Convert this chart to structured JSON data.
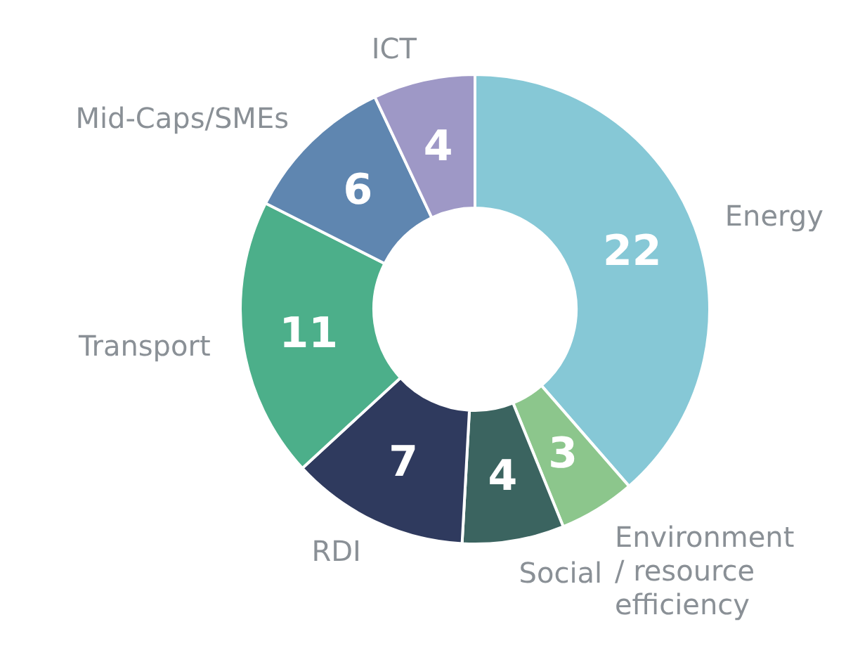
{
  "chart_data": {
    "type": "donut",
    "categories": [
      "Energy",
      "Environment / resource efficiency",
      "Social",
      "RDI",
      "Transport",
      "Mid-Caps/SMEs",
      "ICT"
    ],
    "values": [
      22,
      3,
      4,
      7,
      11,
      6,
      4
    ],
    "colors": [
      "#86c8d6",
      "#8cc68c",
      "#3b6460",
      "#2f3a5e",
      "#4caf8a",
      "#5f86b0",
      "#9e98c6"
    ],
    "data_labels": true
  }
}
